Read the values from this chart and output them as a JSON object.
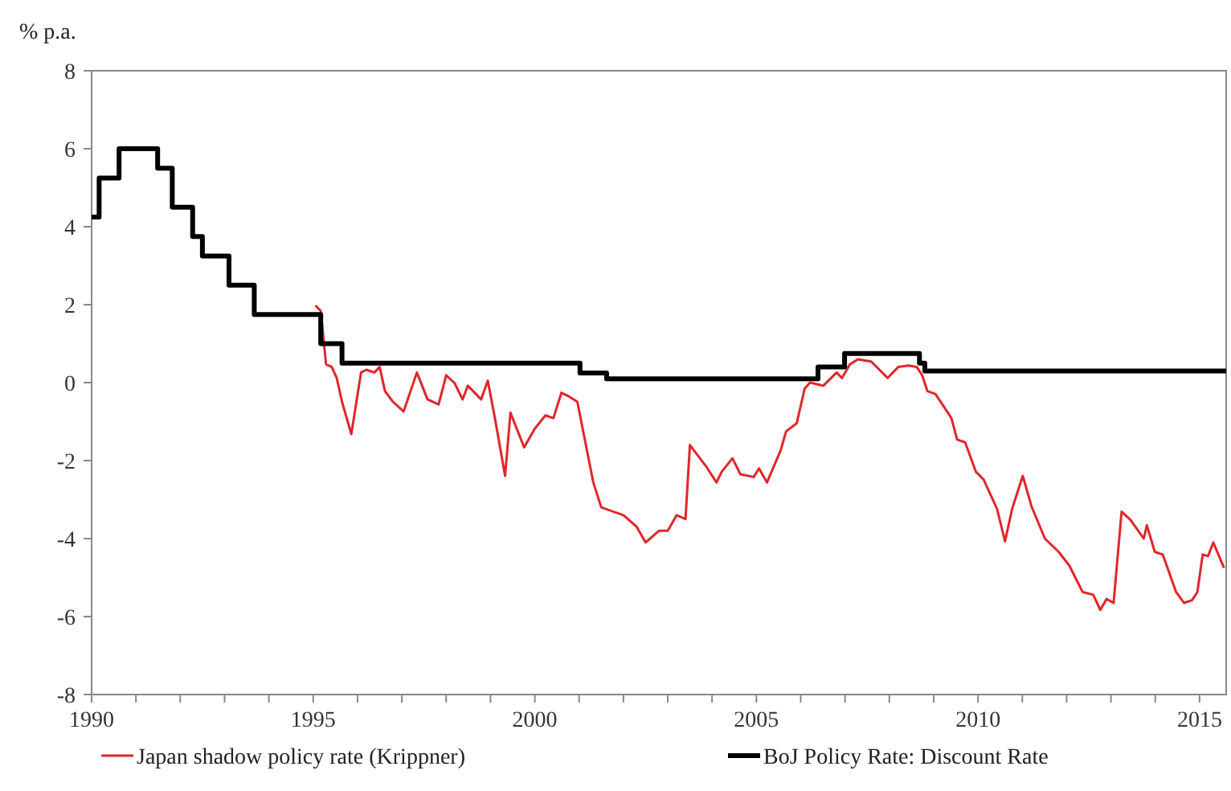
{
  "chart_data": {
    "type": "line",
    "ylabel": "% p.a.",
    "xlim": [
      1990,
      2015.6
    ],
    "ylim": [
      -8,
      8
    ],
    "yticks": [
      -8,
      -6,
      -4,
      -2,
      0,
      2,
      4,
      6,
      8
    ],
    "xticks": [
      1990,
      {
        "value": 1991,
        "label": null
      },
      {
        "value": 1992,
        "label": null
      },
      {
        "value": 1993,
        "label": null
      },
      {
        "value": 1994,
        "label": null
      },
      1995,
      {
        "value": 1996,
        "label": null
      },
      {
        "value": 1997,
        "label": null
      },
      {
        "value": 1998,
        "label": null
      },
      {
        "value": 1999,
        "label": null
      },
      2000,
      {
        "value": 2001,
        "label": null
      },
      {
        "value": 2002,
        "label": null
      },
      {
        "value": 2003,
        "label": null
      },
      {
        "value": 2004,
        "label": null
      },
      2005,
      {
        "value": 2006,
        "label": null
      },
      {
        "value": 2007,
        "label": null
      },
      {
        "value": 2008,
        "label": null
      },
      {
        "value": 2009,
        "label": null
      },
      2010,
      {
        "value": 2011,
        "label": null
      },
      {
        "value": 2012,
        "label": null
      },
      {
        "value": 2013,
        "label": null
      },
      {
        "value": 2014,
        "label": null
      },
      2015
    ],
    "grid": false,
    "legend": "bottom",
    "line_style": "solid",
    "marker": "none",
    "series": [
      {
        "name": "Japan shadow policy rate (Krippner)",
        "color": "#e0262b",
        "x": [
          1995.05,
          1995.17,
          1995.29,
          1995.42,
          1995.53,
          1995.65,
          1995.86,
          1996.08,
          1996.2,
          1996.38,
          1996.5,
          1996.62,
          1996.8,
          1997.04,
          1997.34,
          1997.58,
          1997.83,
          1998.0,
          1998.19,
          1998.37,
          1998.49,
          1998.79,
          1998.94,
          1999.1,
          1999.33,
          1999.45,
          1999.76,
          2000.0,
          2000.24,
          2000.42,
          2000.6,
          2000.78,
          2000.96,
          2001.32,
          2001.5,
          2002.0,
          2002.3,
          2002.5,
          2002.8,
          2003.0,
          2003.2,
          2003.4,
          2003.5,
          2003.86,
          2004.1,
          2004.22,
          2004.46,
          2004.64,
          2004.94,
          2005.06,
          2005.24,
          2005.55,
          2005.67,
          2005.91,
          2006.09,
          2006.21,
          2006.51,
          2006.81,
          2006.93,
          2007.11,
          2007.29,
          2007.59,
          2007.96,
          2008.2,
          2008.44,
          2008.62,
          2008.74,
          2008.86,
          2009.04,
          2009.4,
          2009.53,
          2009.71,
          2009.95,
          2010.13,
          2010.43,
          2010.61,
          2010.77,
          2011.01,
          2011.21,
          2011.51,
          2011.82,
          2012.06,
          2012.36,
          2012.6,
          2012.76,
          2012.9,
          2013.06,
          2013.24,
          2013.44,
          2013.74,
          2013.81,
          2013.99,
          2014.17,
          2014.47,
          2014.65,
          2014.83,
          2014.95,
          2015.07,
          2015.19,
          2015.31,
          2015.55
        ],
        "values": [
          1.98,
          1.84,
          0.47,
          0.4,
          0.12,
          -0.49,
          -1.32,
          0.26,
          0.33,
          0.26,
          0.4,
          -0.22,
          -0.49,
          -0.74,
          0.26,
          -0.43,
          -0.56,
          0.19,
          -0.01,
          -0.43,
          -0.08,
          -0.43,
          0.05,
          -0.91,
          -2.39,
          -0.77,
          -1.66,
          -1.18,
          -0.84,
          -0.91,
          -0.26,
          -0.36,
          -0.49,
          -2.56,
          -3.2,
          -3.4,
          -3.7,
          -4.1,
          -3.8,
          -3.8,
          -3.4,
          -3.5,
          -1.6,
          -2.14,
          -2.56,
          -2.28,
          -1.94,
          -2.35,
          -2.42,
          -2.2,
          -2.56,
          -1.73,
          -1.25,
          -1.04,
          -0.15,
          0,
          -0.08,
          0.26,
          0.12,
          0.47,
          0.6,
          0.54,
          0.12,
          0.4,
          0.44,
          0.4,
          0.19,
          -0.22,
          -0.29,
          -0.91,
          -1.46,
          -1.53,
          -2.28,
          -2.49,
          -3.24,
          -4.07,
          -3.24,
          -2.39,
          -3.18,
          -4.0,
          -4.34,
          -4.69,
          -5.37,
          -5.44,
          -5.83,
          -5.55,
          -5.65,
          -3.31,
          -3.52,
          -4.0,
          -3.66,
          -4.34,
          -4.41,
          -5.37,
          -5.65,
          -5.58,
          -5.37,
          -4.41,
          -4.45,
          -4.1,
          -4.75
        ]
      },
      {
        "name": "BoJ Policy Rate: Discount Rate",
        "type": "step",
        "color": "#000000",
        "x": [
          1990,
          1990.17,
          1990.62,
          1991.49,
          1991.82,
          1992.28,
          1992.5,
          1993.1,
          1993.67,
          1995.17,
          1995.65,
          2001.02,
          2001.62,
          2006.39,
          2006.99,
          2008.68,
          2008.8,
          2015.6
        ],
        "values": [
          4.25,
          5.25,
          6.0,
          5.5,
          4.5,
          3.75,
          3.25,
          2.5,
          1.75,
          1.0,
          0.5,
          0.25,
          0.1,
          0.4,
          0.75,
          0.5,
          0.3,
          0.3
        ]
      }
    ]
  }
}
